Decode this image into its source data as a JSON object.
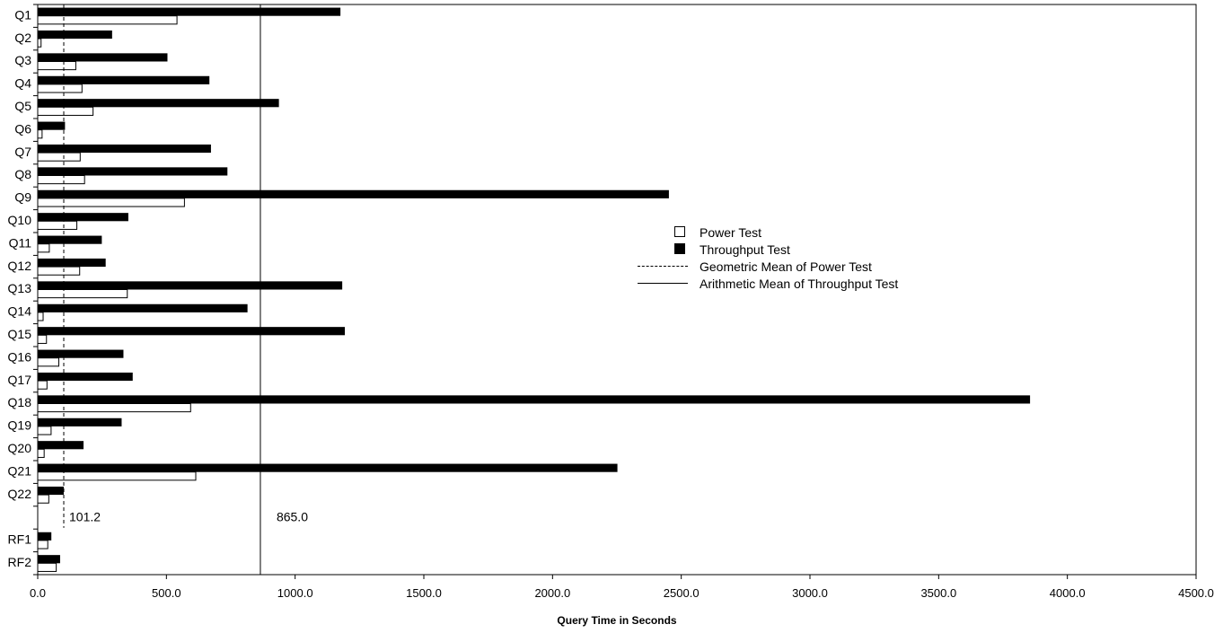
{
  "chart_data": {
    "type": "bar",
    "orientation": "horizontal",
    "categories": [
      "Q1",
      "Q2",
      "Q3",
      "Q4",
      "Q5",
      "Q6",
      "Q7",
      "Q8",
      "Q9",
      "Q10",
      "Q11",
      "Q12",
      "Q13",
      "Q14",
      "Q15",
      "Q16",
      "Q17",
      "Q18",
      "Q19",
      "Q20",
      "Q21",
      "Q22",
      "",
      "RF1",
      "RF2"
    ],
    "series": [
      {
        "name": "Power Test",
        "style": "open",
        "values": [
          541,
          13,
          148,
          172,
          215,
          17,
          165,
          182,
          570,
          152,
          45,
          163,
          348,
          21,
          34,
          82,
          36,
          594,
          52,
          25,
          614,
          43,
          null,
          39,
          72
        ]
      },
      {
        "name": "Throughput Test",
        "style": "solid",
        "values": [
          1176,
          289,
          504,
          667,
          937,
          106,
          673,
          737,
          2452,
          352,
          249,
          264,
          1183,
          815,
          1193,
          333,
          369,
          3855,
          326,
          178,
          2252,
          101,
          null,
          53,
          87
        ]
      }
    ],
    "reference_lines": [
      {
        "name": "Geometric Mean of Power Test",
        "value": 101.2,
        "label": "101.2",
        "style": "dashed"
      },
      {
        "name": "Arithmetic Mean of Throughput Test",
        "value": 865.0,
        "label": "865.0",
        "style": "solid"
      }
    ],
    "xlabel": "Query Time in Seconds",
    "ylabel": "",
    "xlim": [
      0,
      4500
    ],
    "xticks": [
      0,
      500,
      1000,
      1500,
      2000,
      2500,
      3000,
      3500,
      4000,
      4500
    ],
    "xtick_labels": [
      "0.0",
      "500.0",
      "1000.0",
      "1500.0",
      "2000.0",
      "2500.0",
      "3000.0",
      "3500.0",
      "4000.0",
      "4500.0"
    ],
    "grid": false,
    "legend": {
      "position": "right-center",
      "entries": [
        "Power Test",
        "Throughput Test",
        "Geometric Mean of Power Test",
        "Arithmetic Mean of Throughput Test"
      ]
    },
    "colors": {
      "background": "#ffffff",
      "bars": "#000000",
      "axis": "#000000"
    }
  }
}
